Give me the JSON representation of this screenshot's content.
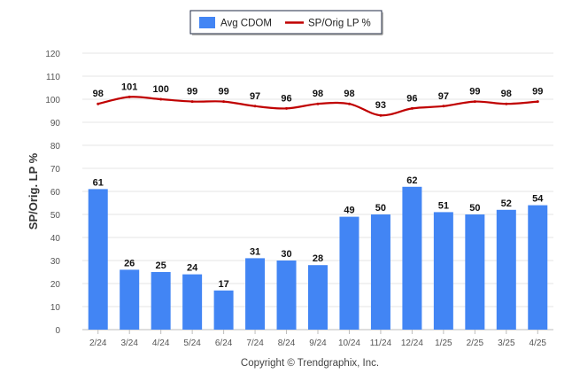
{
  "chart_data": {
    "type": "bar",
    "categories": [
      "2/24",
      "3/24",
      "4/24",
      "5/24",
      "6/24",
      "7/24",
      "8/24",
      "9/24",
      "10/24",
      "11/24",
      "12/24",
      "1/25",
      "2/25",
      "3/25",
      "4/25"
    ],
    "series": [
      {
        "name": "Avg CDOM",
        "type": "bar",
        "color": "#4285f4",
        "values": [
          61,
          26,
          25,
          24,
          17,
          31,
          30,
          28,
          49,
          50,
          62,
          51,
          50,
          52,
          54
        ]
      },
      {
        "name": "SP/Orig LP %",
        "type": "line",
        "color": "#c00000",
        "values": [
          98,
          101,
          100,
          99,
          99,
          97,
          96,
          98,
          98,
          93,
          96,
          97,
          99,
          98,
          99
        ]
      }
    ],
    "ylabel": "SP/Orig. LP %",
    "xlabel": "",
    "ylim": [
      0,
      120
    ],
    "yticks": [
      0,
      10,
      20,
      30,
      40,
      50,
      60,
      70,
      80,
      90,
      100,
      110,
      120
    ],
    "grid": true,
    "legend_placement": "top-center",
    "data_labels": true
  },
  "footer": {
    "copyright": "Copyright © Trendgraphix, Inc."
  }
}
